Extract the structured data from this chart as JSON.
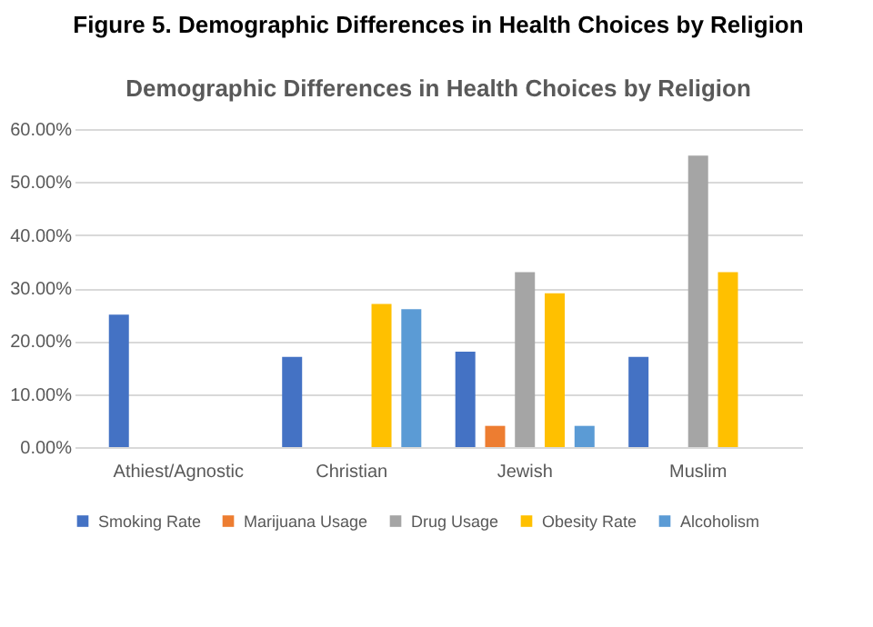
{
  "chart_data": {
    "type": "bar",
    "title": "Figure 5. Demographic Differences in Health Choices by Religion",
    "subtitle": "Demographic Differences in Health Choices by Religion",
    "categories": [
      "Athiest/Agnostic",
      "Christian",
      "Jewish",
      "Muslim"
    ],
    "series": [
      {
        "name": "Smoking Rate",
        "color": "#4472c4",
        "values": [
          25,
          17,
          18,
          17
        ]
      },
      {
        "name": "Marijuana Usage",
        "color": "#ed7d31",
        "values": [
          null,
          null,
          4,
          null
        ]
      },
      {
        "name": "Drug Usage",
        "color": "#a5a5a5",
        "values": [
          null,
          null,
          33,
          55
        ]
      },
      {
        "name": "Obesity Rate",
        "color": "#ffc000",
        "values": [
          null,
          27,
          29,
          33
        ]
      },
      {
        "name": "Alcoholism",
        "color": "#5b9bd5",
        "values": [
          null,
          26,
          4,
          null
        ]
      }
    ],
    "ylim": [
      0,
      60
    ],
    "yticks": [
      {
        "value": 0,
        "label": "0.00%"
      },
      {
        "value": 10,
        "label": "10.00%"
      },
      {
        "value": 20,
        "label": "20.00%"
      },
      {
        "value": 30,
        "label": "30.00%"
      },
      {
        "value": 40,
        "label": "40.00%"
      },
      {
        "value": 50,
        "label": "50.00%"
      },
      {
        "value": 60,
        "label": "60.00%"
      }
    ],
    "grid": "y",
    "legend": "bottom"
  }
}
